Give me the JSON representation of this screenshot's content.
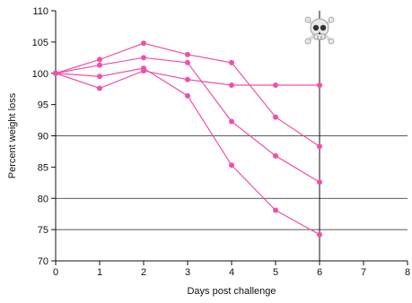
{
  "chart_data": {
    "type": "line",
    "title": "",
    "xlabel": "Days post challenge",
    "ylabel": "Percent weight loss",
    "xlim": [
      0,
      8
    ],
    "ylim": [
      70,
      110
    ],
    "xticks": [
      0,
      1,
      2,
      3,
      4,
      5,
      6,
      7,
      8
    ],
    "yticks": [
      70,
      75,
      80,
      85,
      90,
      95,
      100,
      105,
      110
    ],
    "reference_lines_y": [
      75,
      80,
      90
    ],
    "death_marker": {
      "x": 6,
      "icon": "skull-and-crossbones-icon"
    },
    "line_color": "#f050a8",
    "reference_line_color": "#222222",
    "series": [
      {
        "x": [
          0,
          1,
          2,
          3,
          4,
          5,
          6
        ],
        "values": [
          100,
          102.2,
          104.8,
          103.0,
          101.7,
          93.0,
          88.3
        ]
      },
      {
        "x": [
          0,
          1,
          2,
          3,
          4,
          5,
          6
        ],
        "values": [
          100,
          101.3,
          102.5,
          101.7,
          92.3,
          86.8,
          82.6
        ]
      },
      {
        "x": [
          0,
          1,
          2,
          3,
          4,
          5,
          6
        ],
        "values": [
          100,
          99.5,
          100.8,
          96.4,
          85.3,
          78.1,
          74.2
        ]
      },
      {
        "x": [
          0,
          1,
          2,
          3,
          4,
          5,
          6
        ],
        "values": [
          100,
          97.6,
          100.4,
          99.0,
          98.1,
          98.1,
          98.1
        ]
      }
    ]
  }
}
